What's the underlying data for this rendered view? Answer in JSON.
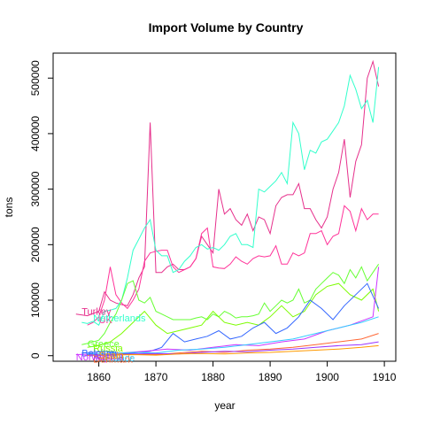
{
  "chart_data": {
    "type": "line",
    "title": "Import Volume by Country",
    "xlabel": "year",
    "ylabel": "tons",
    "xlim": [
      1852,
      1912
    ],
    "ylim": [
      -10000,
      545000
    ],
    "xticks": [
      1860,
      1870,
      1880,
      1890,
      1900,
      1910
    ],
    "yticks": [
      0,
      100000,
      200000,
      300000,
      400000,
      500000
    ],
    "grid": false,
    "series": [
      {
        "name": "Turkey",
        "color": "#E6308C",
        "label_at": [
          1857,
          80000
        ],
        "x": [
          1856,
          1858,
          1860,
          1861,
          1862,
          1863,
          1864,
          1865,
          1866,
          1867,
          1868,
          1869,
          1870,
          1871,
          1872,
          1873,
          1874,
          1875,
          1876,
          1877,
          1878,
          1879,
          1880,
          1881,
          1882,
          1883,
          1884,
          1885,
          1886,
          1887,
          1888,
          1889,
          1890,
          1891,
          1892,
          1893,
          1894,
          1895,
          1896,
          1897,
          1898,
          1899,
          1900,
          1901,
          1902,
          1903,
          1904,
          1905,
          1906,
          1907,
          1908,
          1909
        ],
        "y": [
          75000,
          72000,
          80000,
          115000,
          100000,
          95000,
          92000,
          90000,
          110000,
          140000,
          160000,
          420000,
          150000,
          150000,
          160000,
          165000,
          155000,
          155000,
          160000,
          175000,
          215000,
          200000,
          185000,
          300000,
          255000,
          265000,
          245000,
          235000,
          255000,
          225000,
          250000,
          245000,
          220000,
          270000,
          285000,
          290000,
          290000,
          310000,
          265000,
          265000,
          245000,
          230000,
          250000,
          300000,
          330000,
          390000,
          285000,
          350000,
          380000,
          500000,
          530000,
          485000
        ]
      },
      {
        "name": "UK",
        "color": "#FF3399",
        "label_at": [
          1860,
          65000
        ],
        "x": [
          1858,
          1859,
          1860,
          1861,
          1862,
          1863,
          1864,
          1865,
          1866,
          1867,
          1868,
          1869,
          1870,
          1871,
          1872,
          1873,
          1874,
          1875,
          1876,
          1877,
          1878,
          1879,
          1880,
          1881,
          1882,
          1883,
          1884,
          1885,
          1886,
          1887,
          1888,
          1889,
          1890,
          1891,
          1892,
          1893,
          1894,
          1895,
          1896,
          1897,
          1898,
          1899,
          1900,
          1901,
          1902,
          1903,
          1904,
          1905,
          1906,
          1907,
          1908,
          1909
        ],
        "y": [
          55000,
          60000,
          70000,
          100000,
          160000,
          110000,
          95000,
          85000,
          100000,
          120000,
          170000,
          185000,
          188000,
          190000,
          190000,
          160000,
          150000,
          155000,
          160000,
          175000,
          220000,
          230000,
          160000,
          158000,
          157000,
          165000,
          178000,
          170000,
          165000,
          175000,
          180000,
          178000,
          180000,
          198000,
          165000,
          165000,
          185000,
          180000,
          185000,
          220000,
          220000,
          225000,
          200000,
          215000,
          220000,
          270000,
          260000,
          225000,
          265000,
          245000,
          255000,
          255000
        ]
      },
      {
        "name": "Netherlands",
        "color": "#33FFCC",
        "label_at": [
          1859,
          68000
        ],
        "x": [
          1857,
          1858,
          1859,
          1860,
          1861,
          1862,
          1863,
          1864,
          1865,
          1866,
          1867,
          1868,
          1869,
          1870,
          1871,
          1872,
          1873,
          1874,
          1875,
          1876,
          1877,
          1878,
          1879,
          1880,
          1881,
          1882,
          1883,
          1884,
          1885,
          1886,
          1887,
          1888,
          1889,
          1890,
          1891,
          1892,
          1893,
          1894,
          1895,
          1896,
          1897,
          1898,
          1899,
          1900,
          1901,
          1902,
          1903,
          1904,
          1905,
          1906,
          1907,
          1908,
          1909
        ],
        "y": [
          60000,
          58000,
          62000,
          55000,
          80000,
          82000,
          85000,
          100000,
          140000,
          190000,
          210000,
          230000,
          245000,
          190000,
          180000,
          180000,
          150000,
          155000,
          170000,
          180000,
          195000,
          200000,
          192000,
          195000,
          190000,
          200000,
          215000,
          220000,
          200000,
          200000,
          195000,
          300000,
          295000,
          305000,
          315000,
          330000,
          310000,
          420000,
          400000,
          335000,
          370000,
          365000,
          385000,
          390000,
          405000,
          420000,
          450000,
          505000,
          480000,
          445000,
          460000,
          420000,
          520000
        ]
      },
      {
        "name": "Greece",
        "color": "#66FF33",
        "label_at": [
          1858,
          22000
        ],
        "x": [
          1857,
          1858,
          1859,
          1860,
          1861,
          1862,
          1863,
          1864,
          1865,
          1866,
          1867,
          1868,
          1869,
          1870,
          1871,
          1872,
          1873,
          1874,
          1875,
          1876,
          1877,
          1878,
          1879,
          1880,
          1881,
          1882,
          1883,
          1884,
          1885,
          1886,
          1887,
          1888,
          1889,
          1890,
          1891,
          1892,
          1893,
          1894,
          1895,
          1896,
          1897,
          1898,
          1899,
          1900,
          1901,
          1902,
          1903,
          1904,
          1905,
          1906,
          1907,
          1908,
          1909
        ],
        "y": [
          20000,
          22000,
          25000,
          28000,
          40000,
          60000,
          75000,
          100000,
          130000,
          135000,
          100000,
          95000,
          105000,
          80000,
          75000,
          70000,
          65000,
          65000,
          65000,
          65000,
          68000,
          70000,
          65000,
          75000,
          70000,
          80000,
          75000,
          68000,
          70000,
          70000,
          72000,
          75000,
          95000,
          80000,
          90000,
          100000,
          95000,
          100000,
          120000,
          95000,
          100000,
          120000,
          130000,
          140000,
          150000,
          145000,
          130000,
          155000,
          140000,
          160000,
          135000,
          150000,
          165000
        ]
      },
      {
        "name": "Russia",
        "color": "#7CFC00",
        "label_at": [
          1859,
          14000
        ],
        "x": [
          1858,
          1860,
          1862,
          1864,
          1866,
          1868,
          1870,
          1872,
          1874,
          1876,
          1878,
          1880,
          1882,
          1884,
          1886,
          1888,
          1890,
          1892,
          1894,
          1896,
          1898,
          1900,
          1902,
          1904,
          1906,
          1908,
          1909
        ],
        "y": [
          15000,
          18000,
          25000,
          40000,
          60000,
          80000,
          55000,
          40000,
          45000,
          50000,
          55000,
          80000,
          60000,
          55000,
          60000,
          55000,
          70000,
          90000,
          70000,
          80000,
          110000,
          125000,
          130000,
          110000,
          100000,
          120000,
          80000
        ]
      },
      {
        "name": "Belgium",
        "color": "#3366FF",
        "label_at": [
          1857,
          5000
        ],
        "x": [
          1857,
          1859,
          1861,
          1863,
          1865,
          1867,
          1869,
          1871,
          1873,
          1875,
          1877,
          1879,
          1881,
          1883,
          1885,
          1887,
          1889,
          1891,
          1893,
          1895,
          1897,
          1899,
          1901,
          1903,
          1905,
          1907,
          1909
        ],
        "y": [
          5000,
          6000,
          8000,
          5000,
          4000,
          6000,
          8000,
          15000,
          40000,
          25000,
          30000,
          35000,
          45000,
          30000,
          35000,
          50000,
          60000,
          40000,
          50000,
          70000,
          100000,
          85000,
          65000,
          90000,
          110000,
          130000,
          85000
        ]
      },
      {
        "name": "Norway",
        "color": "#CC33FF",
        "label_at": [
          1856,
          -2000
        ],
        "x": [
          1856,
          1860,
          1864,
          1868,
          1872,
          1876,
          1880,
          1884,
          1888,
          1892,
          1896,
          1900,
          1904,
          1908,
          1909
        ],
        "y": [
          2000,
          3000,
          5000,
          8000,
          12000,
          10000,
          15000,
          20000,
          18000,
          25000,
          30000,
          45000,
          55000,
          70000,
          160000
        ]
      },
      {
        "name": "Denmark",
        "color": "#FF6633",
        "label_at": [
          1859,
          -6000
        ],
        "x": [
          1858,
          1862,
          1866,
          1870,
          1874,
          1878,
          1882,
          1886,
          1890,
          1894,
          1898,
          1902,
          1906,
          1909
        ],
        "y": [
          1000,
          2000,
          3000,
          2000,
          5000,
          8000,
          6000,
          10000,
          12000,
          15000,
          20000,
          25000,
          30000,
          40000
        ]
      },
      {
        "name": "France",
        "color": "#33CCFF",
        "label_at": [
          1861,
          -4000
        ],
        "x": [
          1858,
          1862,
          1866,
          1870,
          1874,
          1878,
          1882,
          1886,
          1890,
          1894,
          1898,
          1902,
          1906,
          1909
        ],
        "y": [
          3000,
          4000,
          6000,
          5000,
          10000,
          12000,
          15000,
          20000,
          25000,
          30000,
          40000,
          50000,
          60000,
          70000
        ]
      },
      {
        "name": "Austria",
        "color": "#9933FF",
        "label_at": [
          1859,
          -1000
        ],
        "x": [
          1858,
          1862,
          1866,
          1870,
          1874,
          1878,
          1882,
          1886,
          1890,
          1894,
          1898,
          1902,
          1906,
          1909
        ],
        "y": [
          1000,
          1500,
          3000,
          4000,
          3000,
          6000,
          8000,
          7000,
          10000,
          12000,
          15000,
          18000,
          20000,
          25000
        ]
      },
      {
        "name": "Spain",
        "color": "#FF9900",
        "label_at": [
          1860,
          1500
        ],
        "x": [
          1858,
          1862,
          1866,
          1870,
          1874,
          1878,
          1882,
          1886,
          1890,
          1894,
          1898,
          1902,
          1906,
          1909
        ],
        "y": [
          500,
          1000,
          2000,
          1000,
          3000,
          4000,
          3000,
          5000,
          6000,
          8000,
          10000,
          12000,
          15000,
          18000
        ]
      }
    ]
  }
}
